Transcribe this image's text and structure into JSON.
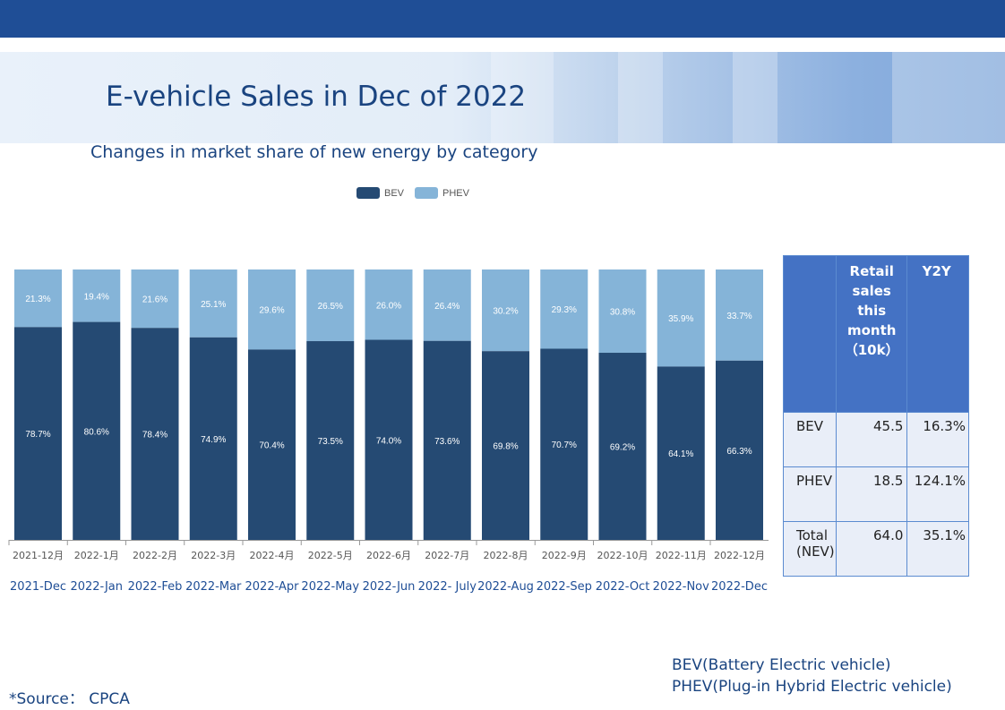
{
  "header": {
    "title": "E-vehicle Sales in Dec of 2022",
    "subtitle": "Changes in market share of new energy by category"
  },
  "colors": {
    "bev": "#254a73",
    "phev": "#85b4d8",
    "brand": "#1f4e96",
    "table_header": "#4472c4"
  },
  "chart_data": {
    "type": "bar",
    "stacked": true,
    "normalized_percent": true,
    "categories": [
      "2021-12月",
      "2022-1月",
      "2022-2月",
      "2022-3月",
      "2022-4月",
      "2022-5月",
      "2022-6月",
      "2022-7月",
      "2022-8月",
      "2022-9月",
      "2022-10月",
      "2022-11月",
      "2022-12月"
    ],
    "categories_en": [
      "2021-Dec",
      "2022-Jan",
      "2022-Feb",
      "2022-Mar",
      "2022-Apr",
      "2022-May",
      "2022-Jun",
      "2022- July",
      "2022-Aug",
      "2022-Sep",
      "2022-Oct",
      "2022-Nov",
      "2022-Dec"
    ],
    "series": [
      {
        "name": "BEV",
        "values": [
          78.7,
          80.6,
          78.4,
          74.9,
          70.4,
          73.5,
          74.0,
          73.6,
          69.8,
          70.7,
          69.2,
          64.1,
          66.3
        ],
        "labels": [
          "78.7%",
          "80.6%",
          "78.4%",
          "74.9%",
          "70.4%",
          "73.5%",
          "74.0%",
          "73.6%",
          "69.8%",
          "70.7%",
          "69.2%",
          "64.1%",
          "66.3%"
        ]
      },
      {
        "name": "PHEV",
        "values": [
          21.3,
          19.4,
          21.6,
          25.1,
          29.6,
          26.5,
          26.0,
          26.4,
          30.2,
          29.3,
          30.8,
          35.9,
          33.7
        ],
        "labels": [
          "21.3%",
          "19.4%",
          "21.6%",
          "25.1%",
          "29.6%",
          "26.5%",
          "26.0%",
          "26.4%",
          "30.2%",
          "29.3%",
          "30.8%",
          "35.9%",
          "33.7%"
        ]
      }
    ],
    "ylim": [
      0,
      100
    ],
    "legend_position": "top-center"
  },
  "table": {
    "headers": [
      "",
      "Retail sales this month （10k）",
      "Y2Y"
    ],
    "rows": [
      {
        "label": "BEV",
        "sales": "45.5",
        "y2y": "16.3%"
      },
      {
        "label": "PHEV",
        "sales": "18.5",
        "y2y": "124.1%"
      },
      {
        "label": "Total(NEV)",
        "sales": "64.0",
        "y2y": "35.1%"
      }
    ]
  },
  "footer": {
    "abbr_bev": "BEV(Battery Electric vehicle)",
    "abbr_phev": "PHEV(Plug-in Hybrid Electric vehicle)",
    "source": "*Source：  CPCA"
  }
}
